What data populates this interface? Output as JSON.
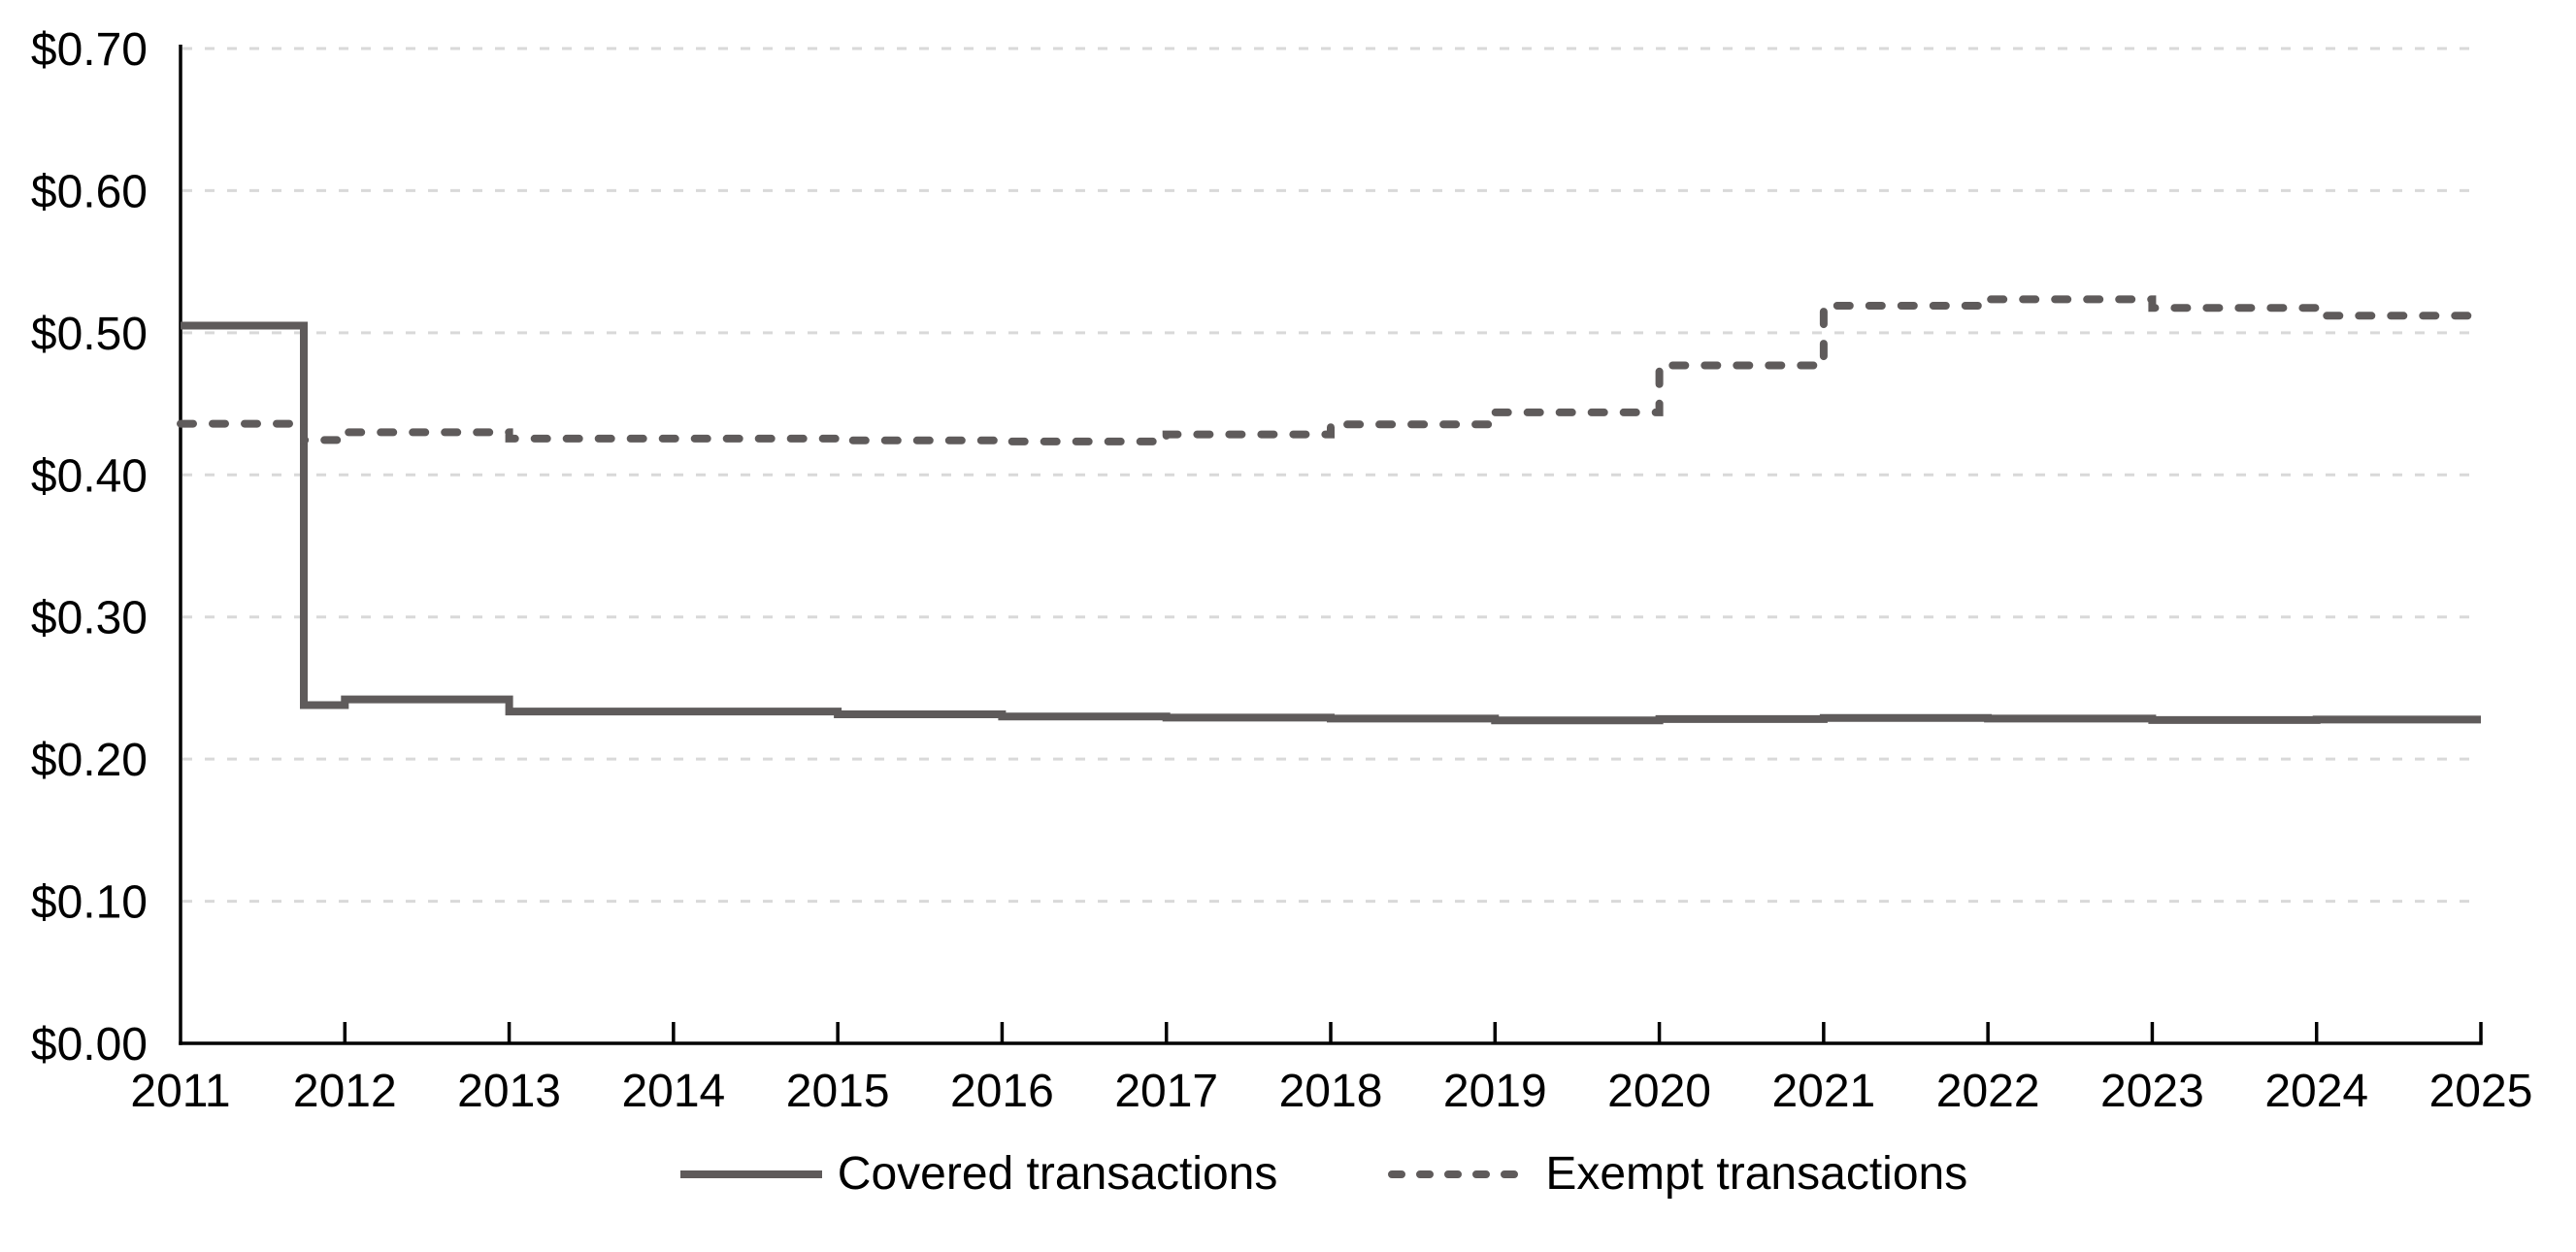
{
  "chart_data": {
    "type": "line",
    "title": "",
    "xlabel": "",
    "ylabel": "",
    "grid": "horizontal-dashed",
    "legend_position": "bottom-center",
    "x_axis": {
      "min": 2011,
      "max": 2025,
      "tick_labels": [
        "2011",
        "2012",
        "2013",
        "2014",
        "2015",
        "2016",
        "2017",
        "2018",
        "2019",
        "2020",
        "2021",
        "2022",
        "2023",
        "2024",
        "2025"
      ],
      "tick_style": "inside"
    },
    "y_axis": {
      "min": 0.0,
      "max": 0.7,
      "step": 0.1,
      "ticks": [
        {
          "value": 0.0,
          "label": "$0.00"
        },
        {
          "value": 0.1,
          "label": "$0.10"
        },
        {
          "value": 0.2,
          "label": "$0.20"
        },
        {
          "value": 0.3,
          "label": "$0.30"
        },
        {
          "value": 0.4,
          "label": "$0.40"
        },
        {
          "value": 0.5,
          "label": "$0.50"
        },
        {
          "value": 0.6,
          "label": "$0.60"
        },
        {
          "value": 0.7,
          "label": "$0.70"
        }
      ]
    },
    "series": [
      {
        "name": "Covered transactions",
        "style": "solid",
        "interpolation": "step-after",
        "end_x": 2025.0,
        "step_points": [
          {
            "x": 2011.0,
            "v": 0.505
          },
          {
            "x": 2011.75,
            "v": 0.238
          },
          {
            "x": 2012.0,
            "v": 0.242
          },
          {
            "x": 2013.0,
            "v": 0.2335
          },
          {
            "x": 2015.0,
            "v": 0.2315
          },
          {
            "x": 2016.0,
            "v": 0.23
          },
          {
            "x": 2017.0,
            "v": 0.2292
          },
          {
            "x": 2018.0,
            "v": 0.2285
          },
          {
            "x": 2019.0,
            "v": 0.2272
          },
          {
            "x": 2020.0,
            "v": 0.2282
          },
          {
            "x": 2021.0,
            "v": 0.229
          },
          {
            "x": 2022.0,
            "v": 0.2285
          },
          {
            "x": 2023.0,
            "v": 0.2275
          },
          {
            "x": 2024.0,
            "v": 0.2278
          }
        ]
      },
      {
        "name": "Exempt transactions",
        "style": "dashed",
        "interpolation": "step-after",
        "end_x": 2025.0,
        "step_points": [
          {
            "x": 2011.0,
            "v": 0.436
          },
          {
            "x": 2011.75,
            "v": 0.4245
          },
          {
            "x": 2012.0,
            "v": 0.43
          },
          {
            "x": 2013.0,
            "v": 0.4255
          },
          {
            "x": 2015.0,
            "v": 0.4242
          },
          {
            "x": 2016.0,
            "v": 0.4235
          },
          {
            "x": 2017.0,
            "v": 0.4285
          },
          {
            "x": 2018.0,
            "v": 0.4355
          },
          {
            "x": 2019.0,
            "v": 0.444
          },
          {
            "x": 2020.0,
            "v": 0.477
          },
          {
            "x": 2021.0,
            "v": 0.519
          },
          {
            "x": 2022.0,
            "v": 0.5235
          },
          {
            "x": 2023.0,
            "v": 0.5175
          },
          {
            "x": 2024.0,
            "v": 0.512
          }
        ]
      }
    ]
  },
  "legend": {
    "items": [
      {
        "label": "Covered transactions",
        "style": "solid"
      },
      {
        "label": "Exempt transactions",
        "style": "dashed"
      }
    ]
  },
  "colors": {
    "series_line": "#5F5B5B",
    "axis": "#000000",
    "gridline": "#D9D9D9",
    "text": "#000000",
    "background": "#FFFFFF"
  }
}
